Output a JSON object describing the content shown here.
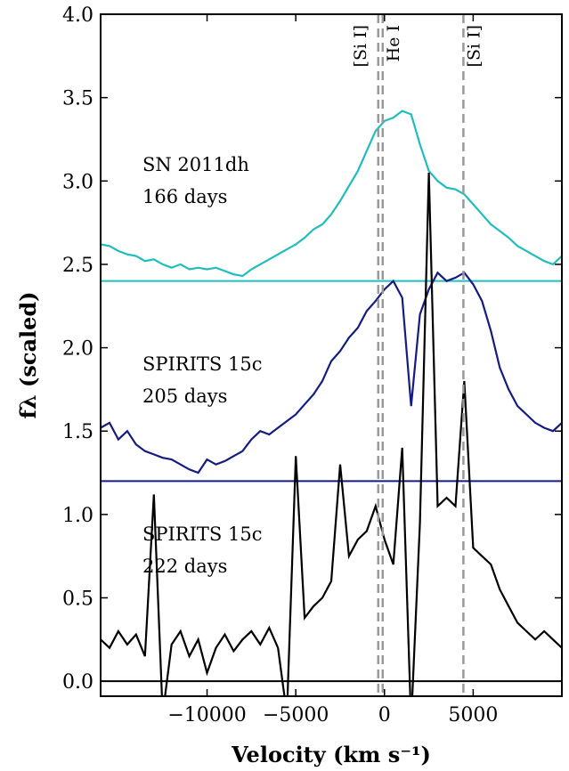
{
  "chart_data": {
    "type": "line",
    "xlabel": "Velocity (km s⁻¹)",
    "ylabel": "fλ (scaled)",
    "xlim": [
      -16000,
      10000
    ],
    "ylim": [
      -0.09,
      4.0
    ],
    "xticks": [
      {
        "value": -10000,
        "label": "−10000"
      },
      {
        "value": -5000,
        "label": "−5000"
      },
      0,
      5000
    ],
    "yticks": [
      {
        "value": 0,
        "label": "0.0"
      },
      0.5,
      {
        "value": 1,
        "label": "1.0"
      },
      1.5,
      {
        "value": 2,
        "label": "2.0"
      },
      2.5,
      {
        "value": 3,
        "label": "3.0"
      },
      3.5,
      {
        "value": 4,
        "label": "4.0"
      }
    ],
    "x": [
      -16000,
      -15500,
      -15000,
      -14500,
      -14000,
      -13500,
      -13000,
      -12500,
      -12000,
      -11500,
      -11000,
      -10500,
      -10000,
      -9500,
      -9000,
      -8500,
      -8000,
      -7500,
      -7000,
      -6500,
      -6000,
      -5500,
      -5000,
      -4500,
      -4000,
      -3500,
      -3000,
      -2500,
      -2000,
      -1500,
      -1000,
      -500,
      0,
      500,
      1000,
      1500,
      2000,
      2500,
      3000,
      3500,
      4000,
      4500,
      5000,
      5500,
      6000,
      6500,
      7000,
      7500,
      8000,
      8500,
      9000,
      9500,
      10000
    ],
    "series": [
      {
        "name": "SN 2011dh",
        "epoch": "166 days",
        "color": "#20bdbd",
        "baseline": 2.4,
        "values": [
          2.62,
          2.61,
          2.58,
          2.56,
          2.55,
          2.52,
          2.53,
          2.5,
          2.48,
          2.5,
          2.47,
          2.48,
          2.47,
          2.48,
          2.46,
          2.44,
          2.43,
          2.47,
          2.5,
          2.53,
          2.56,
          2.59,
          2.62,
          2.66,
          2.71,
          2.74,
          2.8,
          2.88,
          2.97,
          3.06,
          3.18,
          3.3,
          3.36,
          3.38,
          3.42,
          3.4,
          3.22,
          3.06,
          3.0,
          2.96,
          2.95,
          2.92,
          2.86,
          2.8,
          2.74,
          2.7,
          2.66,
          2.61,
          2.58,
          2.55,
          2.52,
          2.5,
          2.55
        ]
      },
      {
        "name": "SPIRITS 15c",
        "epoch": "205 days",
        "color": "#141c82",
        "baseline": 1.2,
        "values": [
          1.52,
          1.55,
          1.45,
          1.5,
          1.42,
          1.38,
          1.36,
          1.34,
          1.33,
          1.3,
          1.27,
          1.25,
          1.33,
          1.3,
          1.32,
          1.35,
          1.38,
          1.45,
          1.5,
          1.48,
          1.52,
          1.56,
          1.6,
          1.66,
          1.72,
          1.8,
          1.92,
          1.98,
          2.06,
          2.12,
          2.22,
          2.28,
          2.35,
          2.4,
          2.3,
          1.65,
          2.2,
          2.35,
          2.45,
          2.4,
          2.42,
          2.45,
          2.38,
          2.28,
          2.1,
          1.88,
          1.75,
          1.65,
          1.6,
          1.55,
          1.52,
          1.5,
          1.55
        ]
      },
      {
        "name": "SPIRITS 15c",
        "epoch": "222 days",
        "color": "#000000",
        "baseline": 0,
        "values": [
          0.25,
          0.2,
          0.3,
          0.22,
          0.28,
          0.15,
          1.12,
          -0.2,
          0.22,
          0.3,
          0.15,
          0.25,
          0.05,
          0.2,
          0.28,
          0.18,
          0.25,
          0.3,
          0.22,
          0.32,
          0.2,
          -0.2,
          1.35,
          0.38,
          0.45,
          0.5,
          0.6,
          1.3,
          0.75,
          0.85,
          0.9,
          1.05,
          0.85,
          0.7,
          1.4,
          -0.25,
          0.95,
          3.05,
          1.05,
          1.1,
          1.05,
          1.8,
          0.8,
          0.75,
          0.7,
          0.55,
          0.45,
          0.35,
          0.3,
          0.25,
          0.3,
          0.25,
          0.2
        ]
      }
    ],
    "vlines": [
      {
        "x": -350,
        "label": "[Si I]",
        "color": "#999999"
      },
      {
        "x": -100,
        "label": "He I",
        "color": "#999999"
      },
      {
        "x": 4450,
        "label": "[Si I]",
        "color": "#999999"
      }
    ]
  }
}
